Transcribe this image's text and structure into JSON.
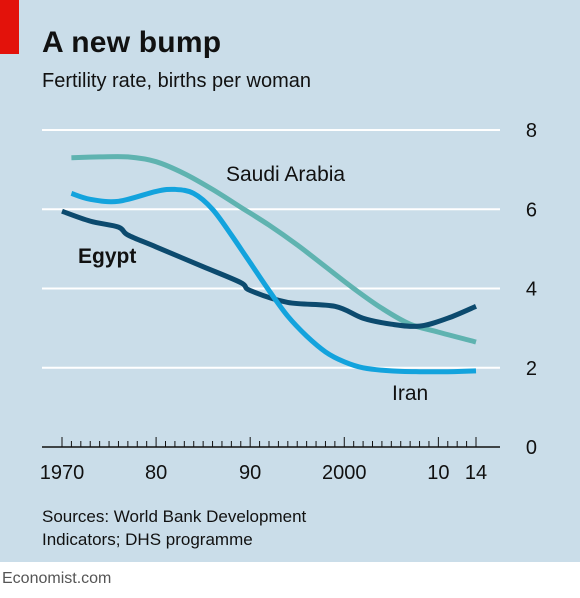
{
  "header": {
    "title": "A new bump",
    "subtitle": "Fertility rate, births per woman"
  },
  "footer": {
    "source_line1": "Sources: World Bank Development",
    "source_line2": "Indicators; DHS programme",
    "brand": "Economist.com"
  },
  "chart_data": {
    "type": "line",
    "title": "A new bump",
    "subtitle": "Fertility rate, births per woman",
    "xlabel": "",
    "ylabel": "",
    "xlim": [
      1970,
      2014
    ],
    "ylim": [
      0,
      8
    ],
    "x_ticks": [
      1970,
      1980,
      1990,
      2000,
      2010,
      2014
    ],
    "x_tick_labels": [
      "1970",
      "80",
      "90",
      "2000",
      "10",
      "14"
    ],
    "y_ticks": [
      0,
      2,
      4,
      6,
      8
    ],
    "y_tick_labels": [
      "0",
      "2",
      "4",
      "6",
      "8"
    ],
    "grid": true,
    "series": [
      {
        "name": "Saudi Arabia",
        "color": "#5fb3b0",
        "x": [
          1971,
          1974,
          1977,
          1980,
          1983,
          1986,
          1989,
          1992,
          1995,
          1998,
          2001,
          2004,
          2007,
          2010,
          2014
        ],
        "y": [
          7.3,
          7.32,
          7.32,
          7.2,
          6.9,
          6.5,
          6.05,
          5.6,
          5.1,
          4.55,
          4.0,
          3.5,
          3.1,
          2.9,
          2.65
        ]
      },
      {
        "name": "Egypt",
        "color": "#0c4a6e",
        "x": [
          1970,
          1973,
          1976,
          1977,
          1980,
          1985,
          1989,
          1990,
          1994,
          1999,
          2002,
          2005,
          2008,
          2011,
          2014
        ],
        "y": [
          5.95,
          5.7,
          5.55,
          5.35,
          5.05,
          4.55,
          4.15,
          3.95,
          3.65,
          3.55,
          3.25,
          3.1,
          3.05,
          3.25,
          3.55
        ]
      },
      {
        "name": "Iran",
        "color": "#13a3dd",
        "x": [
          1971,
          1973,
          1976,
          1980,
          1982,
          1984,
          1986,
          1988,
          1990,
          1992,
          1994,
          1996,
          1998,
          2000,
          2002,
          2005,
          2008,
          2011,
          2014
        ],
        "y": [
          6.4,
          6.25,
          6.2,
          6.45,
          6.5,
          6.4,
          6.0,
          5.35,
          4.65,
          3.95,
          3.3,
          2.8,
          2.4,
          2.15,
          2.0,
          1.92,
          1.9,
          1.9,
          1.92
        ]
      }
    ],
    "annotations": [
      {
        "text": "Saudi Arabia",
        "series": "Saudi Arabia"
      },
      {
        "text": "Egypt",
        "series": "Egypt"
      },
      {
        "text": "Iran",
        "series": "Iran"
      }
    ]
  }
}
